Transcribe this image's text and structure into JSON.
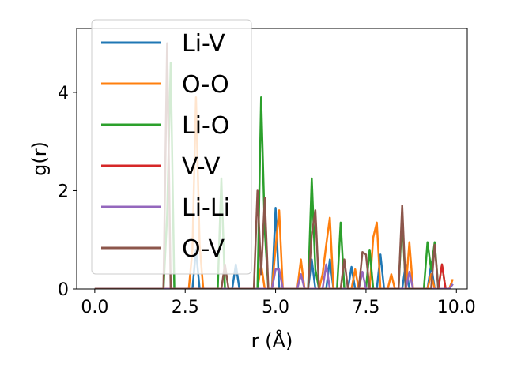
{
  "chart_data": {
    "type": "line",
    "title": "",
    "xlabel": "r (Å)",
    "ylabel": "g(r)",
    "xlim": [
      -0.5,
      10.3
    ],
    "ylim": [
      0,
      5.3
    ],
    "xticks": [
      {
        "value": 0.0,
        "label": "0.0"
      },
      {
        "value": 2.5,
        "label": "2.5"
      },
      {
        "value": 5.0,
        "label": "5.0"
      },
      {
        "value": 7.5,
        "label": "7.5"
      },
      {
        "value": 10.0,
        "label": "10.0"
      }
    ],
    "yticks": [
      {
        "value": 0,
        "label": "0"
      },
      {
        "value": 2,
        "label": "2"
      },
      {
        "value": 4,
        "label": "4"
      }
    ],
    "grid": false,
    "legend_position": "top-left",
    "series": [
      {
        "name": "Li-V",
        "color": "#1f77b4",
        "x": [
          0,
          2.7,
          2.8,
          2.9,
          3.0,
          3.8,
          3.9,
          4.0,
          4.1,
          4.9,
          5.0,
          5.1,
          5.9,
          6.0,
          6.1,
          6.4,
          6.5,
          6.6,
          7.0,
          7.1,
          7.2,
          7.8,
          7.9,
          8.0,
          8.5,
          8.6,
          8.7,
          9.2,
          9.3,
          9.4,
          9.8,
          9.9
        ],
        "y": [
          0,
          0,
          0.8,
          0,
          0,
          0,
          0.5,
          0,
          0,
          0,
          1.65,
          0,
          0,
          0.6,
          0,
          0,
          0.6,
          0,
          0,
          0.45,
          0,
          0,
          0.7,
          0,
          0,
          0.5,
          0,
          0,
          0.5,
          0,
          0,
          0.1
        ]
      },
      {
        "name": "O-O",
        "color": "#ff7f0e",
        "x": [
          0,
          2.6,
          2.7,
          2.8,
          2.9,
          3.0,
          4.5,
          4.6,
          4.7,
          4.9,
          5.0,
          5.1,
          5.2,
          5.6,
          5.7,
          5.8,
          6.2,
          6.3,
          6.4,
          6.5,
          6.6,
          7.1,
          7.2,
          7.3,
          7.6,
          7.7,
          7.8,
          7.9,
          8.1,
          8.2,
          8.3,
          8.6,
          8.7,
          8.8,
          9.2,
          9.3,
          9.4,
          9.8,
          9.9
        ],
        "y": [
          0,
          0,
          0.8,
          3.9,
          0.9,
          0,
          0,
          0.5,
          0,
          0,
          0.85,
          1.6,
          0,
          0,
          0.6,
          0,
          0,
          0.3,
          0.9,
          1.45,
          0,
          0,
          0.4,
          0,
          0,
          1.05,
          1.35,
          0,
          0,
          0.3,
          0,
          0,
          0.95,
          0,
          0,
          0.3,
          0,
          0,
          0.2
        ]
      },
      {
        "name": "Li-O",
        "color": "#2ca02c",
        "x": [
          0,
          1.9,
          2.0,
          2.1,
          2.2,
          3.4,
          3.5,
          3.6,
          4.5,
          4.6,
          4.7,
          4.8,
          5.9,
          6.0,
          6.1,
          6.2,
          6.7,
          6.8,
          6.9,
          7.5,
          7.6,
          7.7,
          8.4,
          8.5,
          8.6,
          9.1,
          9.2,
          9.3,
          9.4,
          9.5,
          9.6,
          9.7
        ],
        "y": [
          0,
          0,
          1.5,
          4.6,
          0,
          0,
          2.25,
          0,
          0,
          3.9,
          1.2,
          0,
          0,
          2.25,
          0.4,
          0,
          0,
          1.35,
          0,
          0,
          0.8,
          0,
          0,
          1.5,
          0,
          0,
          0.95,
          0.4,
          0.95,
          0,
          0.5,
          0
        ]
      },
      {
        "name": "V-V",
        "color": "#d62728",
        "x": [
          0,
          9.5,
          9.6,
          9.7,
          9.8
        ],
        "y": [
          0,
          0,
          0.5,
          0,
          0
        ]
      },
      {
        "name": "Li-Li",
        "color": "#9467bd",
        "x": [
          0,
          4.9,
          5.0,
          5.1,
          5.2,
          5.6,
          5.7,
          5.8,
          6.3,
          6.4,
          6.5,
          7.3,
          7.4,
          7.5,
          8.6,
          8.7,
          8.8,
          9.8,
          9.9
        ],
        "y": [
          0,
          0,
          0.4,
          0.4,
          0,
          0,
          0.3,
          0,
          0,
          0.5,
          0,
          0,
          0.35,
          0,
          0,
          0.35,
          0,
          0,
          0.1
        ]
      },
      {
        "name": "O-V",
        "color": "#8c564b",
        "x": [
          0,
          1.9,
          2.0,
          2.1,
          3.5,
          3.6,
          3.7,
          4.4,
          4.5,
          4.6,
          4.7,
          4.8,
          5.9,
          6.0,
          6.1,
          6.2,
          6.8,
          6.9,
          7.0,
          7.3,
          7.4,
          7.5,
          7.6,
          8.4,
          8.5,
          8.6,
          9.3,
          9.4,
          9.5
        ],
        "y": [
          0,
          0,
          5.0,
          0,
          0,
          0.5,
          0,
          0,
          2.0,
          0.3,
          1.85,
          0,
          0,
          1.1,
          1.6,
          0,
          0,
          0.6,
          0,
          0,
          0.75,
          0.7,
          0,
          0,
          1.7,
          0,
          0,
          0.9,
          0
        ]
      }
    ]
  }
}
